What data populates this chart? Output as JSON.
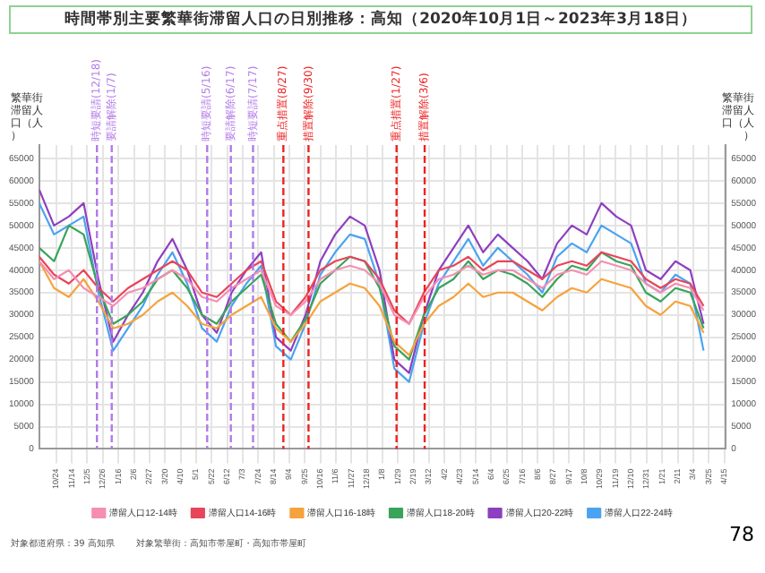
{
  "chart_data": {
    "type": "line",
    "title": "時間帯別主要繁華街滞留人口の日別推移：高知（2020年10月1日～2023年3月18日）",
    "ylabel": "繁華街滞留人口（人）",
    "y2label": "繁華街滞留人口（人）",
    "x": [
      "2020-10-01",
      "2020-10-21",
      "2020-11-10",
      "2020-11-30",
      "2020-12-20",
      "2021-01-09",
      "2021-01-29",
      "2021-02-18",
      "2021-03-10",
      "2021-03-30",
      "2021-04-19",
      "2021-05-09",
      "2021-05-29",
      "2021-06-18",
      "2021-07-08",
      "2021-07-28",
      "2021-08-17",
      "2021-09-06",
      "2021-09-26",
      "2021-10-16",
      "2021-11-05",
      "2021-11-25",
      "2021-12-15",
      "2022-01-04",
      "2022-01-24",
      "2022-02-13",
      "2022-03-05",
      "2022-03-25",
      "2022-04-14",
      "2022-05-04",
      "2022-05-24",
      "2022-06-13",
      "2022-07-03",
      "2022-07-23",
      "2022-08-12",
      "2022-09-01",
      "2022-09-21",
      "2022-10-11",
      "2022-10-31",
      "2022-11-20",
      "2022-12-10",
      "2022-12-30",
      "2023-01-19",
      "2023-02-08",
      "2023-02-28",
      "2023-03-18"
    ],
    "series": [
      {
        "name": "滞留人口12-14時",
        "color": "#f48fb1",
        "values": [
          42000,
          38000,
          40000,
          36000,
          34000,
          32000,
          35000,
          36000,
          38000,
          40000,
          38000,
          34000,
          33000,
          36000,
          38000,
          40000,
          32000,
          30000,
          33000,
          38000,
          40000,
          41000,
          40000,
          37000,
          30000,
          28000,
          34000,
          38000,
          39000,
          41000,
          39000,
          40000,
          40000,
          38000,
          36000,
          39000,
          40000,
          39000,
          42000,
          41000,
          40000,
          37000,
          35000,
          37000,
          36000,
          31000
        ]
      },
      {
        "name": "滞留人口14-16時",
        "color": "#e8455a",
        "values": [
          43000,
          39000,
          37000,
          40000,
          36000,
          33000,
          36000,
          38000,
          40000,
          42000,
          40000,
          35000,
          34000,
          37000,
          40000,
          42000,
          33000,
          30000,
          34000,
          40000,
          42000,
          43000,
          42000,
          38000,
          31000,
          28000,
          35000,
          40000,
          41000,
          43000,
          40000,
          42000,
          42000,
          40000,
          38000,
          41000,
          42000,
          41000,
          44000,
          43000,
          42000,
          38000,
          36000,
          38000,
          37000,
          32000
        ]
      },
      {
        "name": "滞留人口16-18時",
        "color": "#f5a33c",
        "values": [
          42000,
          36000,
          34000,
          38000,
          33000,
          27000,
          28000,
          30000,
          33000,
          35000,
          32000,
          28000,
          27000,
          30000,
          32000,
          34000,
          27000,
          24000,
          28000,
          33000,
          35000,
          37000,
          36000,
          32000,
          24000,
          21000,
          28000,
          32000,
          34000,
          37000,
          34000,
          35000,
          35000,
          33000,
          31000,
          34000,
          36000,
          35000,
          38000,
          37000,
          36000,
          32000,
          30000,
          33000,
          32000,
          26000
        ]
      },
      {
        "name": "滞留人口18-20時",
        "color": "#3aa35a",
        "values": [
          45000,
          42000,
          50000,
          48000,
          36000,
          28000,
          30000,
          33000,
          38000,
          40000,
          36000,
          30000,
          28000,
          33000,
          36000,
          39000,
          28000,
          24000,
          29000,
          37000,
          40000,
          43000,
          42000,
          36000,
          23000,
          20000,
          30000,
          36000,
          38000,
          42000,
          38000,
          40000,
          39000,
          37000,
          34000,
          38000,
          41000,
          40000,
          44000,
          42000,
          41000,
          35000,
          33000,
          36000,
          35000,
          27000
        ]
      },
      {
        "name": "滞留人口20-22時",
        "color": "#8e3fbf",
        "values": [
          58000,
          50000,
          52000,
          55000,
          38000,
          24000,
          30000,
          35000,
          42000,
          47000,
          40000,
          30000,
          26000,
          35000,
          40000,
          44000,
          25000,
          22000,
          30000,
          42000,
          48000,
          52000,
          50000,
          40000,
          20000,
          17000,
          30000,
          40000,
          45000,
          50000,
          44000,
          48000,
          45000,
          42000,
          38000,
          46000,
          50000,
          48000,
          55000,
          52000,
          50000,
          40000,
          38000,
          42000,
          40000,
          28000
        ]
      },
      {
        "name": "滞留人口22-24時",
        "color": "#4aa3f0",
        "values": [
          55000,
          48000,
          50000,
          52000,
          35000,
          22000,
          27000,
          32000,
          39000,
          44000,
          37000,
          27000,
          24000,
          32000,
          37000,
          41000,
          23000,
          20000,
          28000,
          39000,
          44000,
          48000,
          47000,
          37000,
          18000,
          15000,
          28000,
          37000,
          42000,
          47000,
          41000,
          45000,
          42000,
          39000,
          35000,
          43000,
          46000,
          44000,
          50000,
          48000,
          46000,
          37000,
          35000,
          39000,
          37000,
          22000
        ]
      }
    ],
    "xlim": [
      "2020-10-01",
      "2023-04-17"
    ],
    "xticks": [
      {
        "value": "2020-10-24",
        "label": "10/24"
      },
      {
        "value": "2020-11-14",
        "label": "11/14"
      },
      {
        "value": "2020-12-05",
        "label": "12/5"
      },
      {
        "value": "2020-12-26",
        "label": "12/26"
      },
      {
        "value": "2021-01-16",
        "label": "1/16"
      },
      {
        "value": "2021-02-06",
        "label": "2/6"
      },
      {
        "value": "2021-02-27",
        "label": "2/27"
      },
      {
        "value": "2021-03-20",
        "label": "3/20"
      },
      {
        "value": "2021-04-10",
        "label": "4/10"
      },
      {
        "value": "2021-05-01",
        "label": "5/1"
      },
      {
        "value": "2021-05-22",
        "label": "5/22"
      },
      {
        "value": "2021-06-12",
        "label": "6/12"
      },
      {
        "value": "2021-07-03",
        "label": "7/3"
      },
      {
        "value": "2021-07-24",
        "label": "7/24"
      },
      {
        "value": "2021-08-14",
        "label": "8/14"
      },
      {
        "value": "2021-09-04",
        "label": "9/4"
      },
      {
        "value": "2021-09-25",
        "label": "9/25"
      },
      {
        "value": "2021-10-16",
        "label": "10/16"
      },
      {
        "value": "2021-11-06",
        "label": "11/6"
      },
      {
        "value": "2021-11-27",
        "label": "11/27"
      },
      {
        "value": "2021-12-18",
        "label": "12/18"
      },
      {
        "value": "2022-01-08",
        "label": "1/8"
      },
      {
        "value": "2022-01-29",
        "label": "1/29"
      },
      {
        "value": "2022-02-19",
        "label": "2/19"
      },
      {
        "value": "2022-03-12",
        "label": "3/12"
      },
      {
        "value": "2022-04-02",
        "label": "4/2"
      },
      {
        "value": "2022-04-23",
        "label": "4/23"
      },
      {
        "value": "2022-05-14",
        "label": "5/14"
      },
      {
        "value": "2022-06-04",
        "label": "6/4"
      },
      {
        "value": "2022-06-25",
        "label": "6/25"
      },
      {
        "value": "2022-07-16",
        "label": "7/16"
      },
      {
        "value": "2022-08-06",
        "label": "8/6"
      },
      {
        "value": "2022-08-27",
        "label": "8/27"
      },
      {
        "value": "2022-09-17",
        "label": "9/17"
      },
      {
        "value": "2022-10-08",
        "label": "10/8"
      },
      {
        "value": "2022-10-29",
        "label": "10/29"
      },
      {
        "value": "2022-11-19",
        "label": "11/19"
      },
      {
        "value": "2022-12-10",
        "label": "12/10"
      },
      {
        "value": "2022-12-31",
        "label": "12/31"
      },
      {
        "value": "2023-01-21",
        "label": "1/21"
      },
      {
        "value": "2023-02-11",
        "label": "2/11"
      },
      {
        "value": "2023-03-04",
        "label": "3/4"
      },
      {
        "value": "2023-03-25",
        "label": "3/25"
      },
      {
        "value": "2023-04-15",
        "label": "4/15"
      }
    ],
    "ylim": [
      0,
      68000
    ],
    "yticks": [
      0,
      5000,
      10000,
      15000,
      20000,
      25000,
      30000,
      35000,
      40000,
      45000,
      50000,
      55000,
      60000,
      65000
    ],
    "y2lim": [
      0,
      68000
    ],
    "y2ticks": [
      0,
      5000,
      10000,
      15000,
      20000,
      25000,
      30000,
      35000,
      40000,
      45000,
      50000,
      55000,
      60000,
      65000
    ],
    "ref_lines": [
      {
        "axis": "x",
        "value": "2020-12-18",
        "label": "時短要請(12/18)",
        "color": "#b27ae8",
        "line_style": "dashed"
      },
      {
        "axis": "x",
        "value": "2021-01-07",
        "label": "要請解除(1/7)",
        "color": "#b27ae8",
        "line_style": "dashed"
      },
      {
        "axis": "x",
        "value": "2021-05-16",
        "label": "時短要請(5/16)",
        "color": "#b27ae8",
        "line_style": "dashed"
      },
      {
        "axis": "x",
        "value": "2021-06-17",
        "label": "要請解除(6/17)",
        "color": "#b27ae8",
        "line_style": "dashed"
      },
      {
        "axis": "x",
        "value": "2021-07-17",
        "label": "時短要請(7/17)",
        "color": "#b27ae8",
        "line_style": "dashed"
      },
      {
        "axis": "x",
        "value": "2021-08-27",
        "label": "重点措置(8/27)",
        "color": "#ee2222",
        "line_style": "dashed"
      },
      {
        "axis": "x",
        "value": "2021-09-30",
        "label": "措置解除(9/30)",
        "color": "#ee2222",
        "line_style": "dashed"
      },
      {
        "axis": "x",
        "value": "2022-01-27",
        "label": "重点措置(1/27)",
        "color": "#ee2222",
        "line_style": "dashed"
      },
      {
        "axis": "x",
        "value": "2022-03-06",
        "label": "措置解除(3/6)",
        "color": "#ee2222",
        "line_style": "dashed"
      }
    ],
    "grid": true,
    "legend": "bottom",
    "marker": "none",
    "line_style": "solid",
    "annotations": [
      "対象都道府県：39 高知県",
      "対象繁華街：高知市帯屋町・高知市帯屋町",
      "78"
    ]
  }
}
